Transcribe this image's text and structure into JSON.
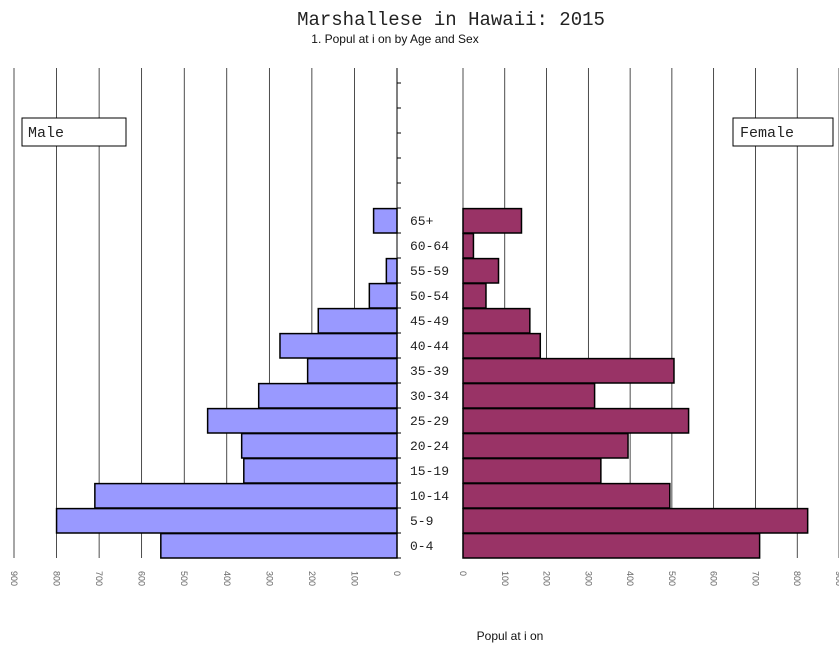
{
  "chart_data": {
    "type": "bar",
    "title": "Marshallese in Hawaii: 2015",
    "subtitle": "1. Popul at i on by Age and Sex",
    "xlabel": "Popul at i on",
    "categories": [
      "0-4",
      "5-9",
      "10-14",
      "15-19",
      "20-24",
      "25-29",
      "30-34",
      "35-39",
      "40-44",
      "45-49",
      "50-54",
      "55-59",
      "60-64",
      "65+"
    ],
    "xlim": [
      0,
      900
    ],
    "ticks": [
      "0",
      "100",
      "200",
      "300",
      "400",
      "500",
      "600",
      "700",
      "800",
      "900"
    ],
    "grid": true,
    "series": [
      {
        "name": "Male",
        "color": "#9999ff",
        "values": [
          555,
          800,
          710,
          360,
          365,
          445,
          325,
          210,
          275,
          185,
          65,
          25,
          0,
          55
        ]
      },
      {
        "name": "Female",
        "color": "#993366",
        "values": [
          710,
          825,
          495,
          330,
          395,
          540,
          315,
          505,
          185,
          160,
          55,
          85,
          25,
          140
        ]
      }
    ]
  }
}
